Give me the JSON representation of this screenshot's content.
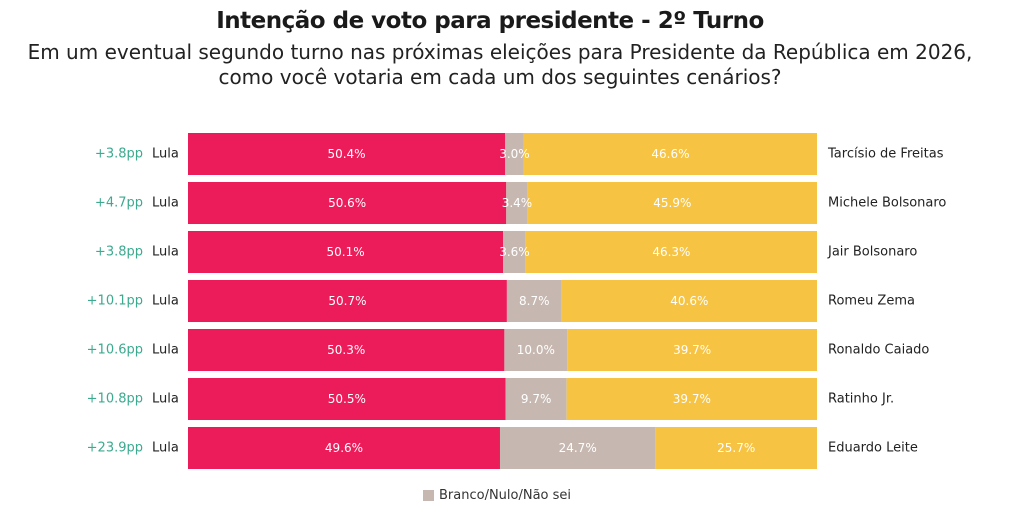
{
  "title": "Intenção de voto para presidente - 2º Turno",
  "subtitle_lines": [
    "Em um eventual segundo turno nas próximas eleições para Presidente da República em 2026,",
    "como você votaria em cada um dos seguintes cenários?"
  ],
  "colors": {
    "lula": "#EC1C5A",
    "blank": "#C6B8B0",
    "opponent": "#F6C343",
    "diff": "#3BAA8F",
    "text": "#222222"
  },
  "legend": {
    "label": "Branco/Nulo/Não sei"
  },
  "chart_data": {
    "type": "bar",
    "orientation": "horizontal",
    "stacked": true,
    "xlim": [
      0,
      100
    ],
    "left_label": "Lula",
    "rows": [
      {
        "diff": "+3.8pp",
        "lula": 50.4,
        "blank": 3.0,
        "opponent": 46.6,
        "lula_label": "50.4%",
        "blank_label": "3.0%",
        "opponent_label": "46.6%",
        "opponent_name": "Tarcísio de Freitas"
      },
      {
        "diff": "+4.7pp",
        "lula": 50.6,
        "blank": 3.4,
        "opponent": 45.9,
        "lula_label": "50.6%",
        "blank_label": "3.4%",
        "opponent_label": "45.9%",
        "opponent_name": "Michele Bolsonaro"
      },
      {
        "diff": "+3.8pp",
        "lula": 50.1,
        "blank": 3.6,
        "opponent": 46.3,
        "lula_label": "50.1%",
        "blank_label": "3.6%",
        "opponent_label": "46.3%",
        "opponent_name": "Jair Bolsonaro"
      },
      {
        "diff": "+10.1pp",
        "lula": 50.7,
        "blank": 8.7,
        "opponent": 40.6,
        "lula_label": "50.7%",
        "blank_label": "8.7%",
        "opponent_label": "40.6%",
        "opponent_name": "Romeu Zema"
      },
      {
        "diff": "+10.6pp",
        "lula": 50.3,
        "blank": 10.0,
        "opponent": 39.7,
        "lula_label": "50.3%",
        "blank_label": "10.0%",
        "opponent_label": "39.7%",
        "opponent_name": "Ronaldo Caiado"
      },
      {
        "diff": "+10.8pp",
        "lula": 50.5,
        "blank": 9.7,
        "opponent": 39.7,
        "lula_label": "50.5%",
        "blank_label": "9.7%",
        "opponent_label": "39.7%",
        "opponent_name": "Ratinho Jr."
      },
      {
        "diff": "+23.9pp",
        "lula": 49.6,
        "blank": 24.7,
        "opponent": 25.7,
        "lula_label": "49.6%",
        "blank_label": "24.7%",
        "opponent_label": "25.7%",
        "opponent_name": "Eduardo Leite"
      }
    ]
  }
}
